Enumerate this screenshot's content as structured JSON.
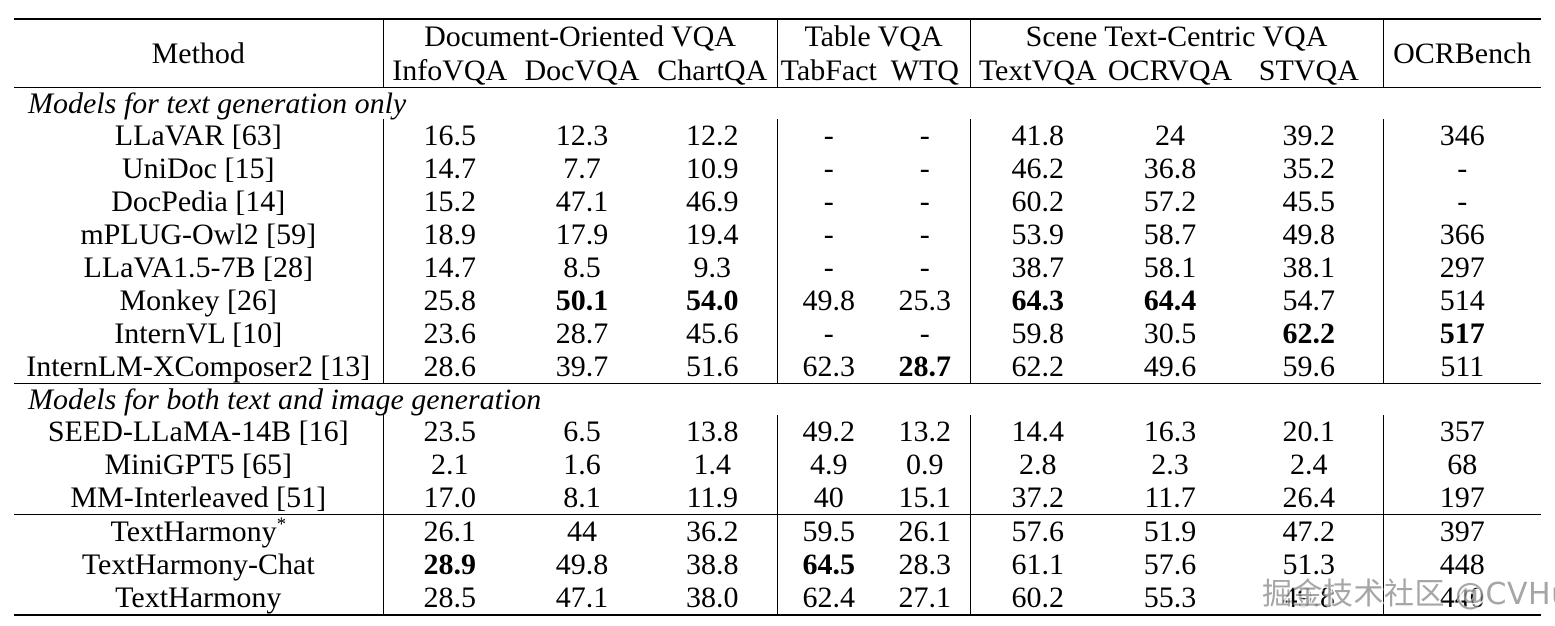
{
  "watermark": {
    "text": "掘金技术社区 @CVHub",
    "color": "#808080"
  },
  "table": {
    "header": {
      "method_label": "Method",
      "groups": [
        {
          "label": "Document-Oriented VQA",
          "columns": [
            "InfoVQA",
            "DocVQA",
            "ChartQA"
          ]
        },
        {
          "label": "Table VQA",
          "columns": [
            "TabFact",
            "WTQ"
          ]
        },
        {
          "label": "Scene Text-Centric VQA",
          "columns": [
            "TextVQA",
            "OCRVQA",
            "STVQA"
          ]
        },
        {
          "label": "OCRBench",
          "columns": []
        }
      ]
    },
    "sections": [
      {
        "title": "Models for text generation only",
        "rows": [
          {
            "method": "LLaVAR [63]",
            "values": [
              "16.5",
              "12.3",
              "12.2",
              "-",
              "-",
              "41.8",
              "24",
              "39.2",
              "346"
            ],
            "bold": []
          },
          {
            "method": "UniDoc [15]",
            "values": [
              "14.7",
              "7.7",
              "10.9",
              "-",
              "-",
              "46.2",
              "36.8",
              "35.2",
              "-"
            ],
            "bold": []
          },
          {
            "method": "DocPedia [14]",
            "values": [
              "15.2",
              "47.1",
              "46.9",
              "-",
              "-",
              "60.2",
              "57.2",
              "45.5",
              "-"
            ],
            "bold": []
          },
          {
            "method": "mPLUG-Owl2 [59]",
            "values": [
              "18.9",
              "17.9",
              "19.4",
              "-",
              "-",
              "53.9",
              "58.7",
              "49.8",
              "366"
            ],
            "bold": []
          },
          {
            "method": "LLaVA1.5-7B [28]",
            "values": [
              "14.7",
              "8.5",
              "9.3",
              "-",
              "-",
              "38.7",
              "58.1",
              "38.1",
              "297"
            ],
            "bold": []
          },
          {
            "method": "Monkey [26]",
            "values": [
              "25.8",
              "50.1",
              "54.0",
              "49.8",
              "25.3",
              "64.3",
              "64.4",
              "54.7",
              "514"
            ],
            "bold": [
              1,
              2,
              5,
              6
            ]
          },
          {
            "method": "InternVL [10]",
            "values": [
              "23.6",
              "28.7",
              "45.6",
              "-",
              "-",
              "59.8",
              "30.5",
              "62.2",
              "517"
            ],
            "bold": [
              7,
              8
            ]
          },
          {
            "method": "InternLM-XComposer2 [13]",
            "values": [
              "28.6",
              "39.7",
              "51.6",
              "62.3",
              "28.7",
              "62.2",
              "49.6",
              "59.6",
              "511"
            ],
            "bold": [
              4
            ]
          }
        ]
      },
      {
        "title": "Models for both text and image generation",
        "rows": [
          {
            "method": "SEED-LLaMA-14B [16]",
            "values": [
              "23.5",
              "6.5",
              "13.8",
              "49.2",
              "13.2",
              "14.4",
              "16.3",
              "20.1",
              "357"
            ],
            "bold": []
          },
          {
            "method": "MiniGPT5 [65]",
            "values": [
              "2.1",
              "1.6",
              "1.4",
              "4.9",
              "0.9",
              "2.8",
              "2.3",
              "2.4",
              "68"
            ],
            "bold": []
          },
          {
            "method": "MM-Interleaved [51]",
            "values": [
              "17.0",
              "8.1",
              "11.9",
              "40",
              "15.1",
              "37.2",
              "11.7",
              "26.4",
              "197"
            ],
            "bold": []
          }
        ]
      },
      {
        "title": null,
        "rows": [
          {
            "method": "TextHarmony",
            "method_sup": "*",
            "values": [
              "26.1",
              "44",
              "36.2",
              "59.5",
              "26.1",
              "57.6",
              "51.9",
              "47.2",
              "397"
            ],
            "bold": []
          },
          {
            "method": "TextHarmony-Chat",
            "values": [
              "28.9",
              "49.8",
              "38.8",
              "64.5",
              "28.3",
              "61.1",
              "57.6",
              "51.3",
              "448"
            ],
            "bold": [
              0,
              3
            ]
          },
          {
            "method": "TextHarmony",
            "values": [
              "28.5",
              "47.1",
              "38.0",
              "62.4",
              "27.1",
              "60.2",
              "55.3",
              "49.8",
              "440"
            ],
            "bold": []
          }
        ]
      }
    ]
  }
}
